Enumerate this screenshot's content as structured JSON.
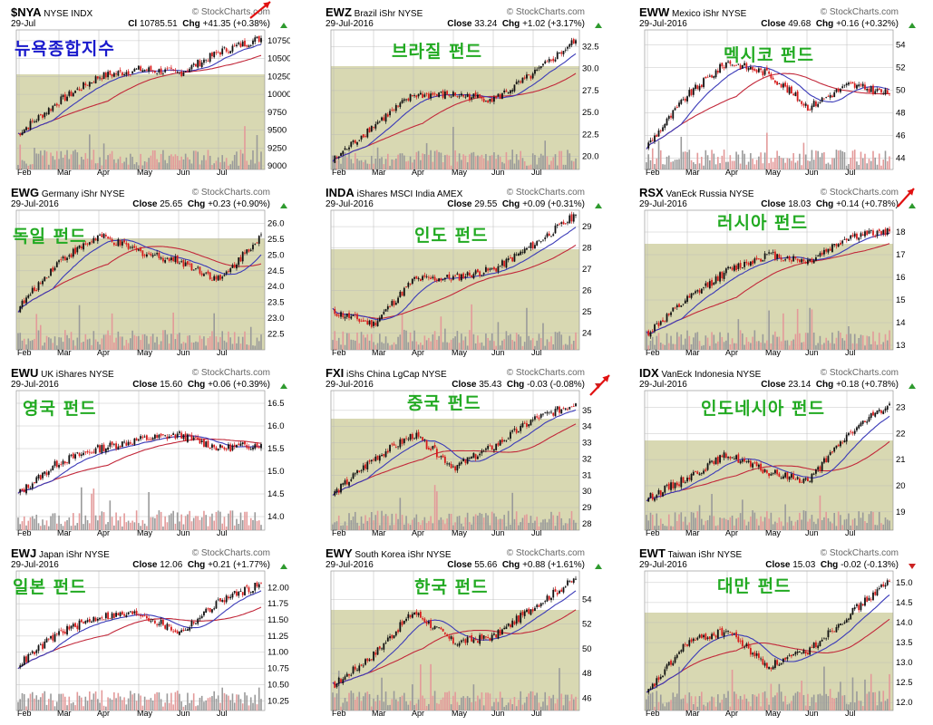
{
  "colors": {
    "panel_bg": "#d8d8b2",
    "up": "#111111",
    "down": "#d81b1b",
    "vol_up": "#9a9a9a",
    "vol_down": "#e39a9a",
    "ma_short": "#3a3ab8",
    "ma_long": "#c2283a",
    "title_green": "#22aa22",
    "title_blue": "#1a1acc",
    "arrow": "#e11111",
    "grid": "#b8b8b8"
  },
  "months": [
    "Feb",
    "Mar",
    "Apr",
    "May",
    "Jun",
    "Jul"
  ],
  "charts": [
    {
      "sym": "$NYA",
      "name": "NYSE INDX",
      "date": "29-Jul",
      "close_label": "Cl",
      "close": "10785.51",
      "chg": "+41.35 (+0.38%)",
      "dir": "up",
      "title": "뉴욕종합지수",
      "title_blue": true,
      "ticks": [
        "10750",
        "10500",
        "10250",
        "10000",
        "9750",
        "9500",
        "9250",
        "9000"
      ],
      "y": [
        9000,
        10750
      ],
      "arrow": true,
      "chart_data": {
        "type": "line",
        "title": "뉴욕종합지수",
        "ylim": [
          8950,
          10850
        ],
        "x": [
          "Feb",
          "Mar",
          "Apr",
          "May",
          "Jun",
          "Jul",
          "29-Jul"
        ],
        "close": [
          9450,
          9900,
          10250,
          10350,
          10300,
          10600,
          10785.51
        ]
      }
    },
    {
      "sym": "EWZ",
      "name": "Brazil iShr NYSE",
      "date": "29-Jul-2016",
      "close_label": "Close",
      "close": "33.24",
      "chg": "+1.02 (+3.17%)",
      "dir": "up",
      "title": "브라질 펀드",
      "title_blue": false,
      "ticks": [
        "32.5",
        "30.0",
        "27.5",
        "25.0",
        "22.5",
        "20.0"
      ],
      "y": [
        20.0,
        32.5
      ],
      "arrow": false,
      "chart_data": {
        "type": "line",
        "title": "브라질 펀드",
        "ylim": [
          18.5,
          34
        ],
        "x": [
          "Feb",
          "Mar",
          "Apr",
          "May",
          "Jun",
          "Jul",
          "29-Jul"
        ],
        "close": [
          19.5,
          23.5,
          27.0,
          27.0,
          26.5,
          29.5,
          33.24
        ]
      }
    },
    {
      "sym": "EWW",
      "name": "Mexico iShr NYSE",
      "date": "29-Jul-2016",
      "close_label": "Close",
      "close": "49.68",
      "chg": "+0.16 (+0.32%)",
      "dir": "up",
      "title": "멕시코 펀드",
      "title_blue": false,
      "ticks": [
        "54",
        "52",
        "50",
        "48",
        "46",
        "44"
      ],
      "y": [
        44,
        54
      ],
      "arrow": false,
      "chart_data": {
        "type": "line",
        "title": "멕시코 펀드",
        "ylim": [
          43,
          55
        ],
        "x": [
          "Feb",
          "Mar",
          "Apr",
          "May",
          "Jun",
          "Jul",
          "29-Jul"
        ],
        "close": [
          45.0,
          49.5,
          52.5,
          51.5,
          48.5,
          50.5,
          49.68
        ]
      }
    },
    {
      "sym": "EWG",
      "name": "Germany iShr NYSE",
      "date": "29-Jul-2016",
      "close_label": "Close",
      "close": "25.65",
      "chg": "+0.23 (+0.90%)",
      "dir": "up",
      "title": "독일 펀드",
      "title_blue": false,
      "ticks": [
        "26.0",
        "25.5",
        "25.0",
        "24.5",
        "24.0",
        "23.5",
        "23.0",
        "22.5"
      ],
      "y": [
        22.5,
        26.0
      ],
      "arrow": false,
      "chart_data": {
        "type": "line",
        "title": "독일 펀드",
        "ylim": [
          22.0,
          26.3
        ],
        "x": [
          "Feb",
          "Mar",
          "Apr",
          "May",
          "Jun",
          "Jul",
          "29-Jul"
        ],
        "close": [
          23.3,
          24.8,
          25.6,
          25.1,
          24.8,
          24.2,
          25.65
        ]
      }
    },
    {
      "sym": "INDA",
      "name": "iShares MSCI India AMEX",
      "date": "29-Jul-2016",
      "close_label": "Close",
      "close": "29.55",
      "chg": "+0.09 (+0.31%)",
      "dir": "up",
      "title": "인도 펀드",
      "title_blue": false,
      "ticks": [
        "29",
        "28",
        "27",
        "26",
        "25",
        "24"
      ],
      "y": [
        24,
        29
      ],
      "arrow": false,
      "chart_data": {
        "type": "line",
        "title": "인도 펀드",
        "ylim": [
          23.2,
          29.6
        ],
        "x": [
          "Feb",
          "Mar",
          "Apr",
          "May",
          "Jun",
          "Jul",
          "29-Jul"
        ],
        "close": [
          25.0,
          24.4,
          26.5,
          26.6,
          27.0,
          28.2,
          29.55
        ]
      }
    },
    {
      "sym": "RSX",
      "name": "VanEck Russia NYSE",
      "date": "29-Jul-2016",
      "close_label": "Close",
      "close": "18.03",
      "chg": "+0.14 (+0.78%)",
      "dir": "up",
      "title": "러시아 펀드",
      "title_blue": false,
      "ticks": [
        "18",
        "17",
        "16",
        "15",
        "14",
        "13"
      ],
      "y": [
        13,
        18
      ],
      "arrow": true,
      "chart_data": {
        "type": "line",
        "title": "러시아 펀드",
        "ylim": [
          12.8,
          18.8
        ],
        "x": [
          "Feb",
          "Mar",
          "Apr",
          "May",
          "Jun",
          "Jul",
          "29-Jul"
        ],
        "close": [
          13.5,
          15.0,
          16.3,
          17.0,
          16.7,
          17.8,
          18.03
        ]
      }
    },
    {
      "sym": "EWU",
      "name": "UK iShares NYSE",
      "date": "29-Jul-2016",
      "close_label": "Close",
      "close": "15.60",
      "chg": "+0.06 (+0.39%)",
      "dir": "up",
      "title": "영국 펀드",
      "title_blue": false,
      "ticks": [
        "16.5",
        "16.0",
        "15.5",
        "15.0",
        "14.5",
        "14.0"
      ],
      "y": [
        14.0,
        16.5
      ],
      "arrow": false,
      "chart_data": {
        "type": "line",
        "title": "영국 펀드",
        "ylim": [
          13.7,
          16.7
        ],
        "x": [
          "Feb",
          "Mar",
          "Apr",
          "May",
          "Jun",
          "Jul",
          "29-Jul"
        ],
        "close": [
          14.5,
          15.2,
          15.5,
          15.7,
          15.8,
          15.5,
          15.6
        ]
      }
    },
    {
      "sym": "FXI",
      "name": "iShs China LgCap NYSE",
      "date": "29-Jul-2016",
      "close_label": "Close",
      "close": "35.43",
      "chg": "-0.03 (-0.08%)",
      "dir": "down",
      "title": "중국 펀드",
      "title_blue": false,
      "ticks": [
        "35",
        "34",
        "33",
        "32",
        "31",
        "30",
        "29",
        "28"
      ],
      "y": [
        28,
        35
      ],
      "arrow": true,
      "chart_data": {
        "type": "line",
        "title": "중국 펀드",
        "ylim": [
          27.6,
          36
        ],
        "x": [
          "Feb",
          "Mar",
          "Apr",
          "May",
          "Jun",
          "Jul",
          "29-Jul"
        ],
        "close": [
          29.8,
          32.0,
          33.5,
          31.5,
          32.8,
          34.5,
          35.43
        ]
      }
    },
    {
      "sym": "IDX",
      "name": "VanEck Indonesia NYSE",
      "date": "29-Jul-2016",
      "close_label": "Close",
      "close": "23.14",
      "chg": "+0.18 (+0.78%)",
      "dir": "up",
      "title": "인도네시아 펀드",
      "title_blue": false,
      "ticks": [
        "23",
        "22",
        "21",
        "20",
        "19"
      ],
      "y": [
        19,
        23
      ],
      "arrow": false,
      "chart_data": {
        "type": "line",
        "title": "인도네시아 펀드",
        "ylim": [
          18.3,
          23.5
        ],
        "x": [
          "Feb",
          "Mar",
          "Apr",
          "May",
          "Jun",
          "Jul",
          "29-Jul"
        ],
        "close": [
          19.5,
          20.3,
          21.2,
          20.5,
          20.2,
          22.0,
          23.14
        ]
      }
    },
    {
      "sym": "EWJ",
      "name": "Japan iShr NYSE",
      "date": "29-Jul-2016",
      "close_label": "Close",
      "close": "12.06",
      "chg": "+0.21 (+1.77%)",
      "dir": "up",
      "title": "일본 펀드",
      "title_blue": false,
      "ticks": [
        "12.00",
        "11.75",
        "11.50",
        "11.25",
        "11.00",
        "10.75",
        "10.50",
        "10.25"
      ],
      "y": [
        10.25,
        12.0
      ],
      "arrow": false,
      "chart_data": {
        "type": "line",
        "title": "일본 펀드",
        "ylim": [
          10.1,
          12.2
        ],
        "x": [
          "Feb",
          "Mar",
          "Apr",
          "May",
          "Jun",
          "Jul",
          "29-Jul"
        ],
        "close": [
          10.8,
          11.3,
          11.55,
          11.6,
          11.3,
          11.8,
          12.06
        ]
      }
    },
    {
      "sym": "EWY",
      "name": "South Korea iShr NYSE",
      "date": "29-Jul-2016",
      "close_label": "Close",
      "close": "55.66",
      "chg": "+0.88 (+1.61%)",
      "dir": "up",
      "title": "한국 펀드",
      "title_blue": false,
      "ticks": [
        "54",
        "52",
        "50",
        "48",
        "46"
      ],
      "y": [
        46,
        54
      ],
      "arrow": false,
      "chart_data": {
        "type": "line",
        "title": "한국 펀드",
        "ylim": [
          45,
          56
        ],
        "x": [
          "Feb",
          "Mar",
          "Apr",
          "May",
          "Jun",
          "Jul",
          "29-Jul"
        ],
        "close": [
          47.0,
          49.5,
          53.0,
          50.5,
          51.0,
          53.5,
          55.66
        ]
      }
    },
    {
      "sym": "EWT",
      "name": "Taiwan iShr NYSE",
      "date": "29-Jul-2016",
      "close_label": "Close",
      "close": "15.03",
      "chg": "-0.02 (-0.13%)",
      "dir": "down",
      "title": "대만 펀드",
      "title_blue": false,
      "ticks": [
        "15.0",
        "14.5",
        "14.0",
        "13.5",
        "13.0",
        "12.5",
        "12.0"
      ],
      "y": [
        12.0,
        15.0
      ],
      "arrow": false,
      "chart_data": {
        "type": "line",
        "title": "대만 펀드",
        "ylim": [
          11.8,
          15.2
        ],
        "x": [
          "Feb",
          "Mar",
          "Apr",
          "May",
          "Jun",
          "Jul",
          "29-Jul"
        ],
        "close": [
          12.2,
          13.5,
          13.8,
          12.9,
          13.3,
          14.2,
          15.03
        ]
      }
    }
  ],
  "watermark": "StockCharts.com"
}
